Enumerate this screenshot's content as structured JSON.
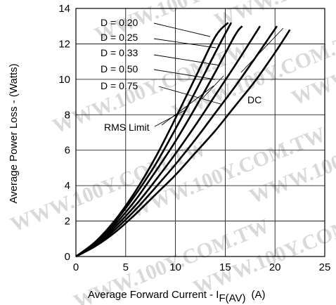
{
  "chart_data": {
    "type": "line",
    "xlabel": "Average Forward Current - I",
    "xlabel_subscript": "F(AV)",
    "xlabel_unit": "(A)",
    "ylabel": "Average Power Loss - (Watts)",
    "xlim": [
      0,
      25
    ],
    "ylim": [
      0,
      14
    ],
    "xticks": [
      0,
      5,
      10,
      15,
      20,
      25
    ],
    "yticks": [
      0,
      2,
      4,
      6,
      8,
      10,
      12,
      14
    ],
    "grid": true,
    "series": [
      {
        "name": "D = 0.20",
        "x": [
          0,
          2,
          4,
          6,
          8,
          10,
          12,
          14,
          15.3
        ],
        "y": [
          0,
          0.85,
          2.1,
          3.7,
          5.6,
          7.8,
          10.1,
          12.4,
          13.2
        ]
      },
      {
        "name": "D = 0.25",
        "x": [
          0,
          2,
          4,
          6,
          8,
          10,
          12,
          14,
          15.6
        ],
        "y": [
          0,
          0.8,
          2.0,
          3.5,
          5.2,
          7.2,
          9.3,
          11.5,
          13.2
        ]
      },
      {
        "name": "D = 0.33",
        "x": [
          0,
          2,
          4,
          6,
          8,
          10,
          12,
          14,
          16,
          16.7
        ],
        "y": [
          0,
          0.75,
          1.85,
          3.2,
          4.8,
          6.5,
          8.4,
          10.4,
          12.5,
          13.0
        ]
      },
      {
        "name": "D = 0.50",
        "x": [
          0,
          2,
          4,
          6,
          8,
          10,
          12,
          14,
          16,
          18.5
        ],
        "y": [
          0,
          0.7,
          1.7,
          2.9,
          4.3,
          5.8,
          7.4,
          9.1,
          10.8,
          13.0
        ]
      },
      {
        "name": "D = 0.75",
        "x": [
          0,
          2,
          4,
          6,
          8,
          10,
          12,
          14,
          16,
          18,
          20.2
        ],
        "y": [
          0,
          0.65,
          1.55,
          2.65,
          3.9,
          5.2,
          6.6,
          8.1,
          9.6,
          11.2,
          13.0
        ]
      },
      {
        "name": "DC",
        "x": [
          0,
          2,
          4,
          6,
          8,
          10,
          12,
          14,
          16,
          18,
          20,
          21.5
        ],
        "y": [
          0,
          0.6,
          1.4,
          2.4,
          3.5,
          4.6,
          5.85,
          7.1,
          8.5,
          9.9,
          11.5,
          12.8
        ]
      }
    ],
    "annotations": {
      "labels": [
        "D = 0.20",
        "D = 0.25",
        "D = 0.33",
        "D = 0.50",
        "D = 0.75"
      ],
      "dc": "DC",
      "rms": "RMS Limit"
    },
    "watermark": "WWW.100Y.COM.TW"
  }
}
